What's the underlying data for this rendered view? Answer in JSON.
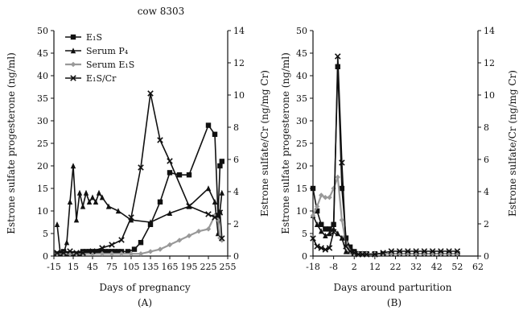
{
  "chart_data": [
    {
      "type": "line",
      "panel_label": "(A)",
      "title": "cow 8303",
      "xlabel": "Days of pregnancy",
      "ylabel_left": "Estrone sulfate progesterone (ng/ml)",
      "ylabel_right": "Estrone sulfate/Cr (ng/mg Cr)",
      "xlim": [
        -15,
        255
      ],
      "xticks": [
        -15,
        15,
        45,
        75,
        105,
        135,
        165,
        195,
        225,
        255
      ],
      "ylim_left": [
        0,
        50
      ],
      "yticks_left": [
        0,
        5,
        10,
        15,
        20,
        25,
        30,
        35,
        40,
        45,
        50
      ],
      "ylim_right": [
        0,
        14
      ],
      "yticks_right": [
        0,
        2,
        4,
        6,
        8,
        10,
        12,
        14
      ],
      "legend_position": "top-left",
      "series": [
        {
          "name": "E₁S",
          "axis": "left",
          "color": "#111111",
          "marker": "square",
          "x": [
            -10,
            -5,
            0,
            5,
            10,
            15,
            20,
            25,
            30,
            35,
            40,
            45,
            50,
            55,
            60,
            65,
            70,
            75,
            80,
            85,
            90,
            100,
            110,
            120,
            135,
            150,
            165,
            180,
            195,
            225,
            235,
            240,
            243,
            246
          ],
          "y": [
            0.5,
            0.5,
            1,
            0.5,
            0.5,
            0.5,
            0.5,
            0.5,
            1,
            1,
            1,
            1,
            1,
            1,
            1,
            1,
            1,
            1,
            1,
            1,
            1,
            1,
            1.5,
            3,
            7,
            12,
            18.5,
            18,
            18,
            29,
            27,
            9,
            20,
            21
          ]
        },
        {
          "name": "Serum P₄",
          "axis": "left",
          "color": "#111111",
          "marker": "triangle",
          "x": [
            -10,
            -5,
            0,
            5,
            10,
            15,
            20,
            25,
            30,
            35,
            40,
            45,
            50,
            55,
            60,
            70,
            85,
            105,
            135,
            165,
            195,
            225,
            235,
            240,
            243,
            246
          ],
          "y": [
            7,
            0.5,
            0.5,
            3,
            12,
            20,
            8,
            14,
            11,
            14,
            12,
            13,
            12,
            14,
            13,
            11,
            10,
            8,
            7.5,
            9.5,
            11,
            15,
            12,
            5,
            10,
            14
          ]
        },
        {
          "name": "Serum E₁S",
          "axis": "left",
          "color": "#999999",
          "marker": "diamond",
          "x": [
            -10,
            0,
            10,
            20,
            30,
            45,
            60,
            75,
            90,
            105,
            120,
            135,
            150,
            165,
            180,
            195,
            210,
            225,
            235,
            240,
            243,
            246
          ],
          "y": [
            0.5,
            0.5,
            0.5,
            0.5,
            0.5,
            0.5,
            0.5,
            0.5,
            0.5,
            0.5,
            0.5,
            1,
            1.5,
            2.5,
            3.5,
            4.5,
            5.5,
            6,
            9,
            8,
            4,
            3.5
          ]
        },
        {
          "name": "E₁S/Cr",
          "axis": "right",
          "color": "#111111",
          "marker": "cross",
          "x": [
            -10,
            0,
            10,
            20,
            30,
            45,
            60,
            75,
            90,
            105,
            120,
            135,
            150,
            165,
            195,
            225,
            235,
            240,
            243,
            246
          ],
          "y": [
            0.2,
            0.2,
            0.3,
            0.2,
            0.2,
            0.3,
            0.5,
            0.7,
            1.0,
            2.4,
            5.5,
            10.1,
            7.2,
            5.9,
            3.1,
            2.6,
            2.4,
            2.5,
            2.7,
            1.1
          ]
        }
      ]
    },
    {
      "type": "line",
      "panel_label": "(B)",
      "title": "",
      "xlabel": "Days around parturition",
      "ylabel_left": "Estrone sulfate progesterone (ng/ml)",
      "ylabel_right": "Estrone sulfate/Cr (ng/mg Cr)",
      "xlim": [
        -18,
        62
      ],
      "xticks": [
        -18,
        -8,
        2,
        12,
        22,
        32,
        42,
        52,
        62
      ],
      "ylim_left": [
        0,
        50
      ],
      "yticks_left": [
        0,
        5,
        10,
        15,
        20,
        25,
        30,
        35,
        40,
        45,
        50
      ],
      "ylim_right": [
        0,
        14
      ],
      "yticks_right": [
        0,
        2,
        4,
        6,
        8,
        10,
        12,
        14
      ],
      "legend_position": "none",
      "series": [
        {
          "name": "E₁S",
          "axis": "left",
          "color": "#111111",
          "marker": "square",
          "x": [
            -18,
            -16,
            -14,
            -12,
            -10,
            -8,
            -6,
            -4,
            -2,
            0,
            2,
            4,
            6,
            8,
            12,
            16,
            20,
            24,
            28,
            32,
            36,
            40,
            44,
            48,
            52
          ],
          "y": [
            15,
            10,
            7,
            6,
            6,
            7,
            42,
            15,
            4,
            2,
            1,
            0.5,
            0.5,
            0.5,
            0.5,
            0.5,
            0.5,
            0.5,
            0.5,
            0.5,
            0.5,
            0.5,
            0.5,
            0.5,
            0.5
          ]
        },
        {
          "name": "Serum P₄",
          "axis": "left",
          "color": "#111111",
          "marker": "triangle",
          "x": [
            -18,
            -16,
            -14,
            -12,
            -10,
            -8,
            -6,
            -4,
            -2,
            0,
            2,
            4,
            6,
            8,
            12,
            16,
            20,
            24,
            28,
            32,
            36,
            40,
            44,
            48,
            52
          ],
          "y": [
            9,
            7,
            5.5,
            4.5,
            5,
            6,
            5,
            4,
            1,
            1,
            0.5,
            0.5,
            0.5,
            0.5,
            0.5,
            0.5,
            0.5,
            0.5,
            0.5,
            0.5,
            0.5,
            0.5,
            0.5,
            0.5,
            0.5
          ]
        },
        {
          "name": "Serum E₁S",
          "axis": "left",
          "color": "#999999",
          "marker": "diamond",
          "x": [
            -18,
            -16,
            -14,
            -12,
            -10,
            -8,
            -6,
            -4,
            -2,
            0,
            2,
            4,
            6,
            8,
            12,
            16,
            20,
            24,
            28,
            32,
            36,
            40,
            44,
            48,
            52
          ],
          "y": [
            9,
            11,
            13.5,
            13,
            13,
            15,
            17.5,
            8,
            3,
            1,
            0.5,
            0.5,
            0.5,
            0.5,
            0.5,
            0.5,
            0.5,
            0.5,
            0.5,
            0.5,
            0.5,
            0.5,
            0.5,
            0.5,
            0.5
          ]
        },
        {
          "name": "E₁S/Cr",
          "axis": "right",
          "color": "#111111",
          "marker": "cross",
          "x": [
            -18,
            -16,
            -14,
            -12,
            -10,
            -8,
            -6,
            -4,
            -2,
            0,
            2,
            4,
            6,
            8,
            12,
            16,
            20,
            24,
            28,
            32,
            36,
            40,
            44,
            48,
            52
          ],
          "y": [
            1.1,
            0.6,
            0.5,
            0.4,
            0.5,
            1.5,
            12.4,
            5.8,
            0.6,
            0.3,
            0.2,
            0.1,
            0.1,
            0.1,
            0.1,
            0.2,
            0.3,
            0.3,
            0.3,
            0.3,
            0.3,
            0.3,
            0.3,
            0.3,
            0.3
          ]
        }
      ]
    }
  ]
}
